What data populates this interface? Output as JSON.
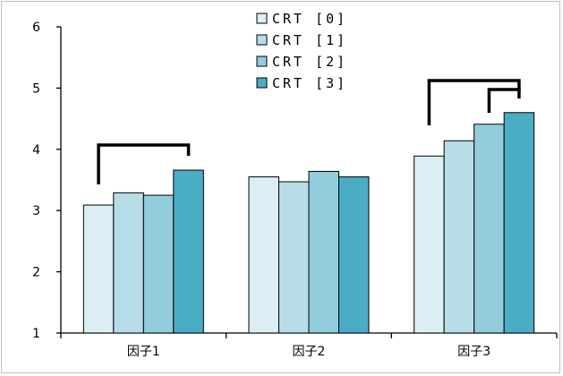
{
  "chart_data": {
    "type": "bar",
    "categories": [
      "因子1",
      "因子2",
      "因子3"
    ],
    "series": [
      {
        "name": "CRT [0]",
        "values": [
          3.09,
          3.55,
          3.89
        ]
      },
      {
        "name": "CRT [1]",
        "values": [
          3.29,
          3.47,
          4.14
        ]
      },
      {
        "name": "CRT [2]",
        "values": [
          3.25,
          3.64,
          4.41
        ]
      },
      {
        "name": "CRT [3]",
        "values": [
          3.66,
          3.55,
          4.6
        ]
      }
    ],
    "colors": [
      "#daeef3",
      "#b7dde8",
      "#92cddc",
      "#4bacc6"
    ],
    "ylim": [
      1,
      6
    ],
    "yticks": [
      1,
      2,
      3,
      4,
      5,
      6
    ],
    "legend_position": "top-center",
    "grid": false,
    "significance_brackets": [
      {
        "category": 0,
        "from_series": 0,
        "to_series": 3
      },
      {
        "category": 2,
        "from_series": 0,
        "to_series": 3
      },
      {
        "category": 2,
        "from_series": 2,
        "to_series": 3
      }
    ]
  }
}
